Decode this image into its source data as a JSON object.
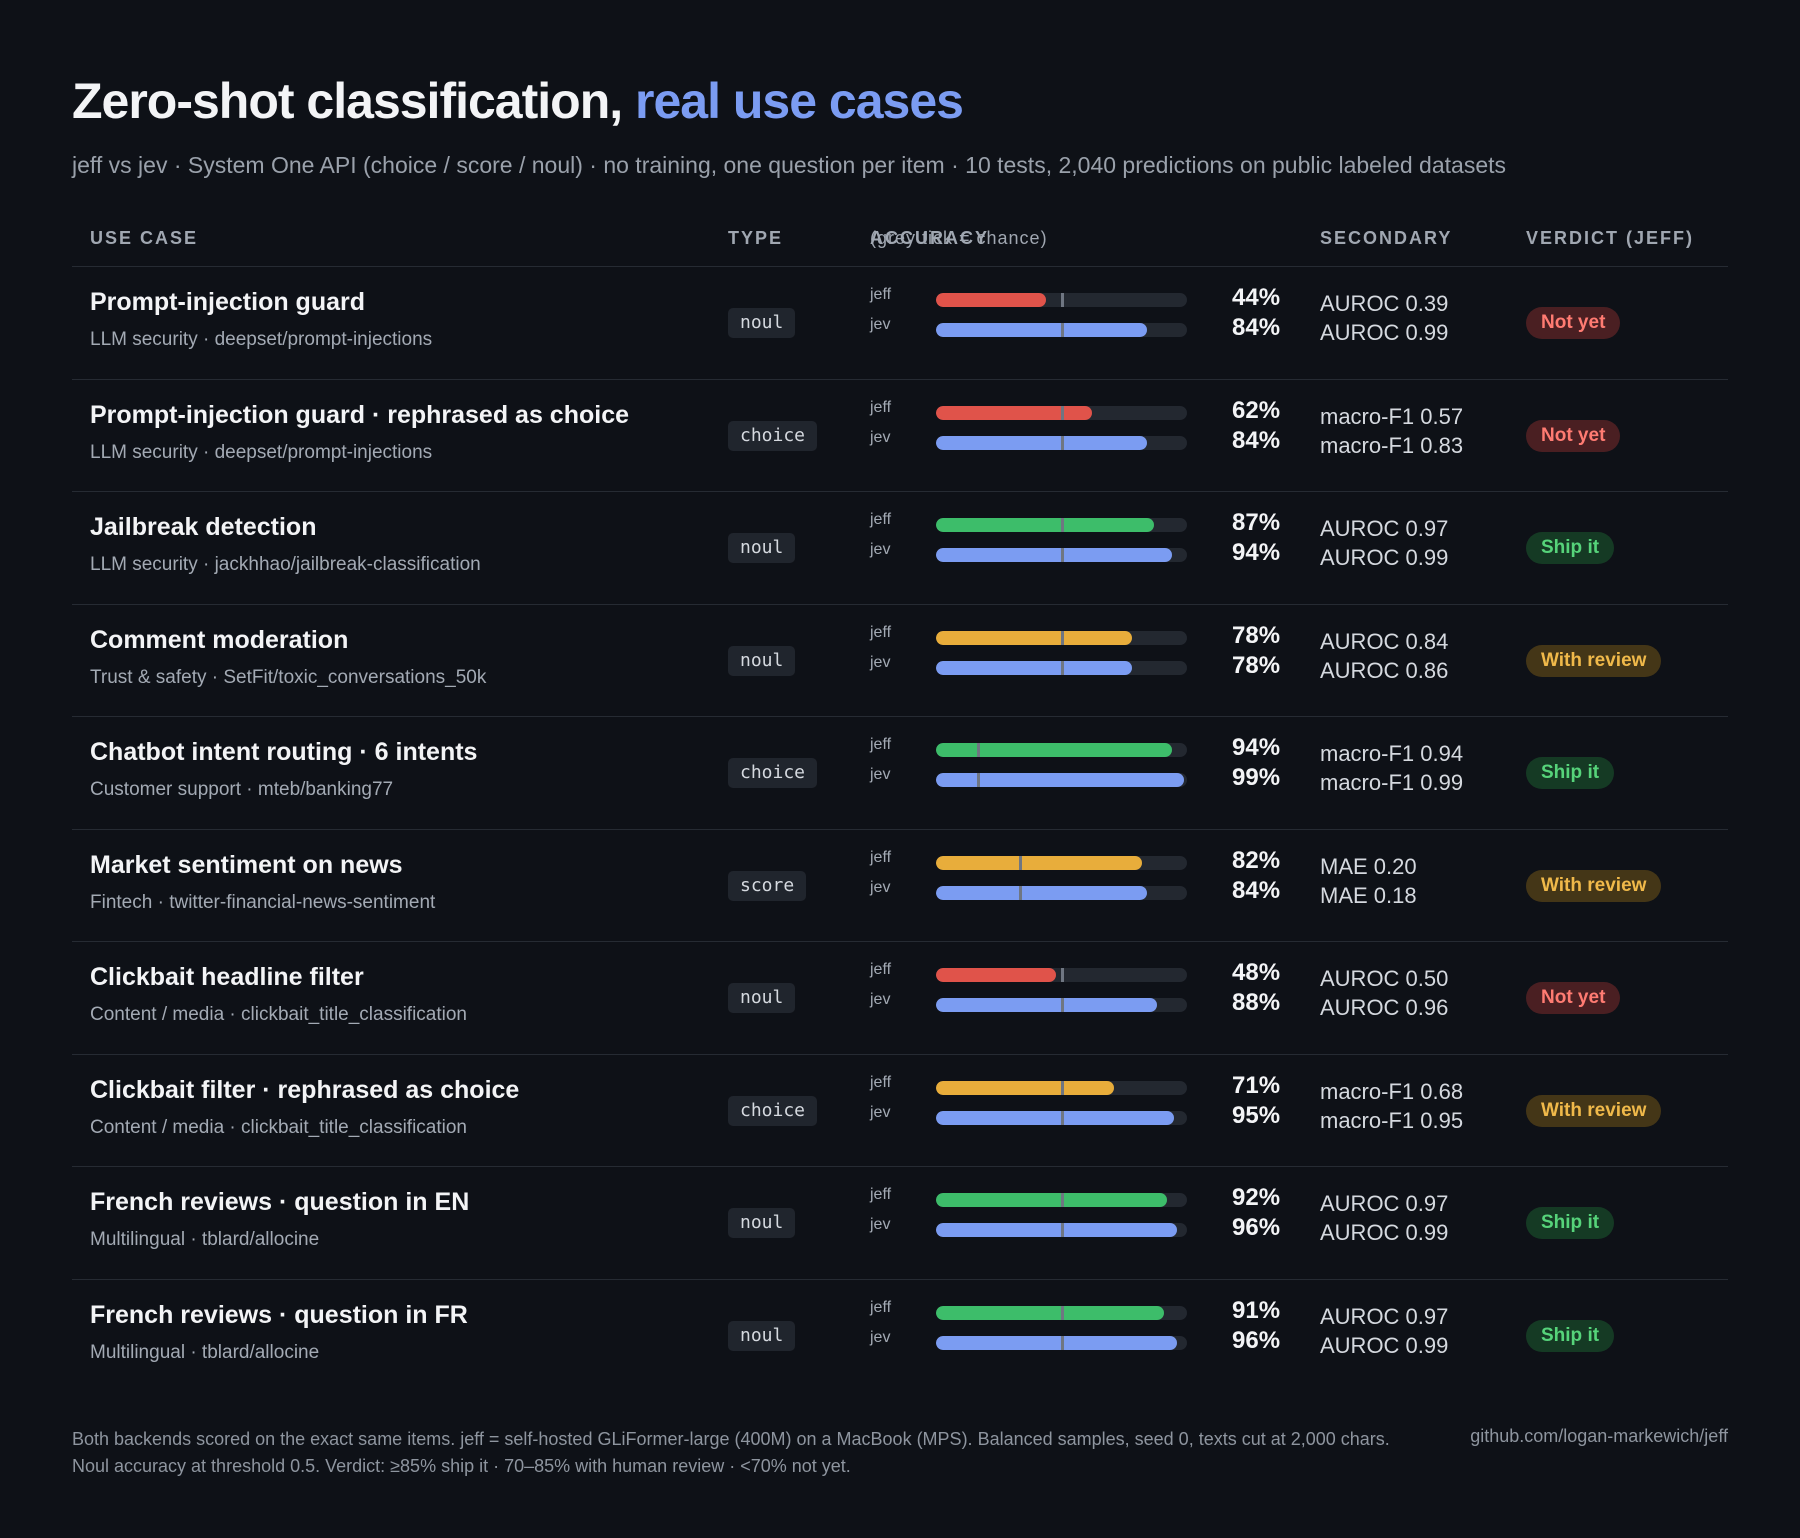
{
  "title": {
    "main": "Zero-shot classification,",
    "accent": "real use cases"
  },
  "subtitle": "jeff vs jev · System One API (choice / score / noul) · no training, one question per item · 10 tests, 2,040 predictions on public labeled datasets",
  "headers": {
    "use_case": "USE CASE",
    "type": "TYPE",
    "accuracy": "ACCURACY",
    "accuracy_note": "(grey tick = chance)",
    "secondary": "SECONDARY",
    "verdict": "VERDICT (JEFF)"
  },
  "colors": {
    "red": "#e0534a",
    "green": "#3dbd6a",
    "amber": "#e8ad3b",
    "blue": "#7b9cf2",
    "verdict_bg": {
      "Not yet": "#4a1f22",
      "Ship it": "#153a24",
      "With review": "#443617"
    },
    "verdict_fg": {
      "Not yet": "#ff7b72",
      "Ship it": "#56d37a",
      "With review": "#f0b94a"
    }
  },
  "chart_data": {
    "type": "bar",
    "orientation": "horizontal",
    "xlim": [
      0,
      100
    ],
    "unit": "%",
    "series_labels": [
      "jeff",
      "jev"
    ],
    "rows": [
      {
        "name": "Prompt-injection guard",
        "meta": "LLM security · deepset/prompt-injections",
        "type": "noul",
        "chance": 50,
        "jeff": {
          "label": "jeff",
          "value": 44,
          "display": "44%",
          "color": "red",
          "secondary": "AUROC 0.39"
        },
        "jev": {
          "label": "jev",
          "value": 84,
          "display": "84%",
          "secondary": "AUROC 0.99"
        },
        "verdict": "Not yet"
      },
      {
        "name": "Prompt-injection guard · rephrased as choice",
        "meta": "LLM security · deepset/prompt-injections",
        "type": "choice",
        "chance": 50,
        "jeff": {
          "label": "jeff",
          "value": 62,
          "display": "62%",
          "color": "red",
          "secondary": "macro-F1 0.57"
        },
        "jev": {
          "label": "jev",
          "value": 84,
          "display": "84%",
          "secondary": "macro-F1 0.83"
        },
        "verdict": "Not yet"
      },
      {
        "name": "Jailbreak detection",
        "meta": "LLM security · jackhhao/jailbreak-classification",
        "type": "noul",
        "chance": 50,
        "jeff": {
          "label": "jeff",
          "value": 87,
          "display": "87%",
          "color": "green",
          "secondary": "AUROC 0.97"
        },
        "jev": {
          "label": "jev",
          "value": 94,
          "display": "94%",
          "secondary": "AUROC 0.99"
        },
        "verdict": "Ship it"
      },
      {
        "name": "Comment moderation",
        "meta": "Trust & safety · SetFit/toxic_conversations_50k",
        "type": "noul",
        "chance": 50,
        "jeff": {
          "label": "jeff",
          "value": 78,
          "display": "78%",
          "color": "amber",
          "secondary": "AUROC 0.84"
        },
        "jev": {
          "label": "jev",
          "value": 78,
          "display": "78%",
          "secondary": "AUROC 0.86"
        },
        "verdict": "With review"
      },
      {
        "name": "Chatbot intent routing · 6 intents",
        "meta": "Customer support · mteb/banking77",
        "type": "choice",
        "chance": 16.7,
        "jeff": {
          "label": "jeff",
          "value": 94,
          "display": "94%",
          "color": "green",
          "secondary": "macro-F1 0.94"
        },
        "jev": {
          "label": "jev",
          "value": 99,
          "display": "99%",
          "secondary": "macro-F1 0.99"
        },
        "verdict": "Ship it"
      },
      {
        "name": "Market sentiment on news",
        "meta": "Fintech · twitter-financial-news-sentiment",
        "type": "score",
        "chance": 33.3,
        "jeff": {
          "label": "jeff",
          "value": 82,
          "display": "82%",
          "color": "amber",
          "secondary": "MAE 0.20"
        },
        "jev": {
          "label": "jev",
          "value": 84,
          "display": "84%",
          "secondary": "MAE 0.18"
        },
        "verdict": "With review"
      },
      {
        "name": "Clickbait headline filter",
        "meta": "Content / media · clickbait_title_classification",
        "type": "noul",
        "chance": 50,
        "jeff": {
          "label": "jeff",
          "value": 48,
          "display": "48%",
          "color": "red",
          "secondary": "AUROC 0.50"
        },
        "jev": {
          "label": "jev",
          "value": 88,
          "display": "88%",
          "secondary": "AUROC 0.96"
        },
        "verdict": "Not yet"
      },
      {
        "name": "Clickbait filter · rephrased as choice",
        "meta": "Content / media · clickbait_title_classification",
        "type": "choice",
        "chance": 50,
        "jeff": {
          "label": "jeff",
          "value": 71,
          "display": "71%",
          "color": "amber",
          "secondary": "macro-F1 0.68"
        },
        "jev": {
          "label": "jev",
          "value": 95,
          "display": "95%",
          "secondary": "macro-F1 0.95"
        },
        "verdict": "With review"
      },
      {
        "name": "French reviews · question in EN",
        "meta": "Multilingual · tblard/allocine",
        "type": "noul",
        "chance": 50,
        "jeff": {
          "label": "jeff",
          "value": 92,
          "display": "92%",
          "color": "green",
          "secondary": "AUROC 0.97"
        },
        "jev": {
          "label": "jev",
          "value": 96,
          "display": "96%",
          "secondary": "AUROC 0.99"
        },
        "verdict": "Ship it"
      },
      {
        "name": "French reviews · question in FR",
        "meta": "Multilingual · tblard/allocine",
        "type": "noul",
        "chance": 50,
        "jeff": {
          "label": "jeff",
          "value": 91,
          "display": "91%",
          "color": "green",
          "secondary": "AUROC 0.97"
        },
        "jev": {
          "label": "jev",
          "value": 96,
          "display": "96%",
          "secondary": "AUROC 0.99"
        },
        "verdict": "Ship it"
      }
    ]
  },
  "footer": {
    "note": "Both backends scored on the exact same items. jeff = self-hosted GLiFormer-large (400M) on a MacBook (MPS). Balanced samples, seed 0, texts cut at 2,000 chars. Noul accuracy at threshold 0.5. Verdict: ≥85% ship it · 70–85% with human review · <70% not yet.",
    "link": "github.com/logan-markewich/jeff"
  }
}
